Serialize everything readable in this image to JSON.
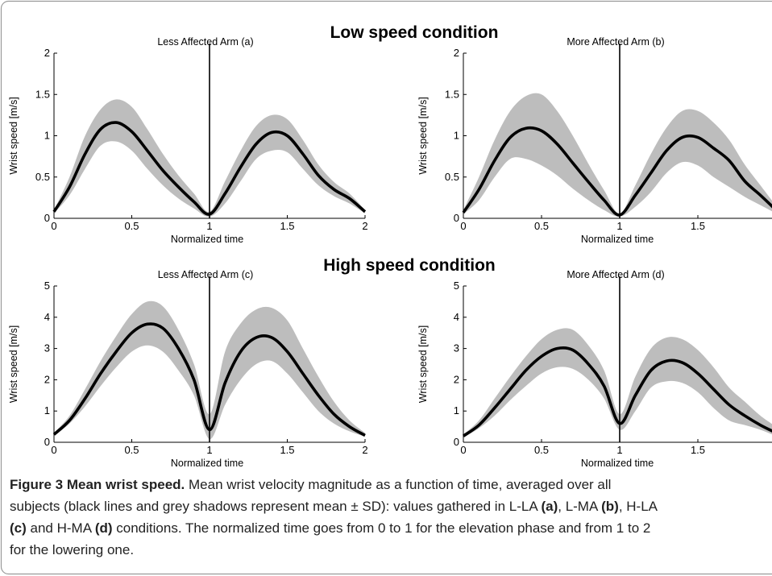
{
  "headings": [
    "Low speed condition",
    "High speed condition"
  ],
  "chart_data": [
    {
      "type": "line",
      "title": "Less Affected Arm (a)",
      "xlabel": "Normalized time",
      "ylabel": "Wrist speed [m/s]",
      "x": [
        0,
        0.1,
        0.2,
        0.3,
        0.4,
        0.5,
        0.6,
        0.7,
        0.8,
        0.9,
        1.0,
        1.1,
        1.2,
        1.3,
        1.4,
        1.5,
        1.6,
        1.7,
        1.8,
        1.9,
        2.0
      ],
      "series": [
        {
          "color": "#000000",
          "values": [
            0.08,
            0.38,
            0.78,
            1.08,
            1.16,
            1.05,
            0.82,
            0.58,
            0.38,
            0.2,
            0.05,
            0.3,
            0.62,
            0.9,
            1.04,
            1.0,
            0.78,
            0.52,
            0.35,
            0.24,
            0.08
          ]
        }
      ],
      "band": {
        "color": "#bdbdbd",
        "upper": [
          0.1,
          0.5,
          1.0,
          1.32,
          1.44,
          1.35,
          1.08,
          0.78,
          0.52,
          0.3,
          0.08,
          0.45,
          0.82,
          1.12,
          1.25,
          1.2,
          0.95,
          0.65,
          0.44,
          0.3,
          0.1
        ],
        "lower": [
          0.06,
          0.28,
          0.6,
          0.88,
          0.93,
          0.82,
          0.6,
          0.4,
          0.24,
          0.12,
          0.02,
          0.18,
          0.45,
          0.72,
          0.82,
          0.8,
          0.6,
          0.4,
          0.27,
          0.18,
          0.06
        ]
      },
      "vline": 1,
      "xlim": [
        0,
        2
      ],
      "xticks": [
        0,
        0.5,
        1,
        1.5,
        2
      ],
      "ylim": [
        0,
        2
      ],
      "yticks": [
        0,
        0.5,
        1,
        1.5,
        2
      ]
    },
    {
      "type": "line",
      "title": "More Affected Arm (b)",
      "xlabel": "Normalized time",
      "ylabel": "Wrist speed [m/s]",
      "x": [
        0,
        0.1,
        0.2,
        0.3,
        0.4,
        0.5,
        0.6,
        0.7,
        0.8,
        0.9,
        1.0,
        1.1,
        1.2,
        1.3,
        1.4,
        1.5,
        1.6,
        1.7,
        1.8,
        1.9,
        2.0
      ],
      "series": [
        {
          "color": "#000000",
          "values": [
            0.07,
            0.35,
            0.7,
            0.98,
            1.09,
            1.06,
            0.9,
            0.67,
            0.44,
            0.22,
            0.04,
            0.28,
            0.55,
            0.82,
            0.98,
            0.98,
            0.85,
            0.7,
            0.45,
            0.28,
            0.1
          ]
        }
      ],
      "band": {
        "color": "#bdbdbd",
        "upper": [
          0.1,
          0.5,
          0.95,
          1.3,
          1.48,
          1.5,
          1.3,
          1.0,
          0.66,
          0.34,
          0.06,
          0.4,
          0.78,
          1.1,
          1.3,
          1.3,
          1.16,
          0.95,
          0.65,
          0.4,
          0.15
        ],
        "lower": [
          0.05,
          0.22,
          0.5,
          0.72,
          0.72,
          0.64,
          0.52,
          0.36,
          0.22,
          0.1,
          0.02,
          0.14,
          0.32,
          0.55,
          0.68,
          0.64,
          0.5,
          0.38,
          0.26,
          0.16,
          0.06
        ]
      },
      "vline": 1,
      "xlim": [
        0,
        2
      ],
      "xticks": [
        0,
        0.5,
        1,
        1.5
      ],
      "ylim": [
        0,
        2
      ],
      "yticks": [
        0,
        0.5,
        1,
        1.5,
        2
      ]
    },
    {
      "type": "line",
      "title": "Less Affected Arm (c)",
      "xlabel": "Normalized time",
      "ylabel": "Wrist speed [m/s]",
      "x": [
        0,
        0.1,
        0.2,
        0.3,
        0.4,
        0.5,
        0.6,
        0.7,
        0.8,
        0.9,
        1.0,
        1.1,
        1.2,
        1.3,
        1.4,
        1.5,
        1.6,
        1.7,
        1.8,
        1.9,
        2.0
      ],
      "series": [
        {
          "color": "#000000",
          "values": [
            0.25,
            0.7,
            1.4,
            2.2,
            2.9,
            3.5,
            3.78,
            3.65,
            3.0,
            2.0,
            0.4,
            1.9,
            2.9,
            3.35,
            3.35,
            2.9,
            2.2,
            1.5,
            0.9,
            0.5,
            0.22
          ]
        }
      ],
      "band": {
        "color": "#bdbdbd",
        "upper": [
          0.3,
          0.85,
          1.7,
          2.6,
          3.4,
          4.1,
          4.5,
          4.35,
          3.6,
          2.5,
          0.9,
          2.9,
          3.8,
          4.25,
          4.3,
          3.9,
          3.0,
          2.1,
          1.3,
          0.7,
          0.3
        ],
        "lower": [
          0.2,
          0.6,
          1.15,
          1.8,
          2.4,
          2.9,
          3.1,
          2.9,
          2.3,
          1.5,
          0.1,
          1.2,
          2.0,
          2.5,
          2.6,
          2.2,
          1.6,
          1.0,
          0.6,
          0.35,
          0.18
        ]
      },
      "vline": 1,
      "xlim": [
        0,
        2
      ],
      "xticks": [
        0,
        0.5,
        1,
        1.5,
        2
      ],
      "ylim": [
        0,
        5
      ],
      "yticks": [
        0,
        1,
        2,
        3,
        4,
        5
      ]
    },
    {
      "type": "line",
      "title": "More Affected Arm (d)",
      "xlabel": "Normalized time",
      "ylabel": "Wrist speed [m/s]",
      "x": [
        0,
        0.1,
        0.2,
        0.3,
        0.4,
        0.5,
        0.6,
        0.7,
        0.8,
        0.9,
        1.0,
        1.1,
        1.2,
        1.3,
        1.4,
        1.5,
        1.6,
        1.7,
        1.8,
        1.9,
        2.0
      ],
      "series": [
        {
          "color": "#000000",
          "values": [
            0.2,
            0.55,
            1.1,
            1.7,
            2.3,
            2.75,
            3.0,
            2.95,
            2.5,
            1.8,
            0.6,
            1.5,
            2.3,
            2.6,
            2.55,
            2.2,
            1.7,
            1.2,
            0.85,
            0.55,
            0.3
          ]
        }
      ],
      "band": {
        "color": "#bdbdbd",
        "upper": [
          0.25,
          0.7,
          1.4,
          2.1,
          2.75,
          3.3,
          3.6,
          3.6,
          3.1,
          2.3,
          0.9,
          2.1,
          3.0,
          3.35,
          3.3,
          2.95,
          2.4,
          1.75,
          1.3,
          0.85,
          0.5
        ],
        "lower": [
          0.15,
          0.45,
          0.85,
          1.35,
          1.8,
          2.2,
          2.4,
          2.35,
          2.0,
          1.4,
          0.4,
          1.0,
          1.75,
          1.95,
          1.9,
          1.6,
          1.1,
          0.7,
          0.55,
          0.4,
          0.2
        ]
      },
      "vline": 1,
      "xlim": [
        0,
        2
      ],
      "xticks": [
        0,
        0.5,
        1,
        1.5
      ],
      "ylim": [
        0,
        5
      ],
      "yticks": [
        0,
        1,
        2,
        3,
        4,
        5
      ]
    }
  ],
  "caption": {
    "lines": [
      [
        "Figure 3 Mean wrist speed.",
        " Mean wrist velocity magnitude as a function of time, averaged over all"
      ],
      [
        "subjects (black lines and grey shadows represent mean ± SD): values gathered in L-LA ",
        "(a)",
        ", L-MA ",
        "(b)",
        ", H-LA"
      ],
      [
        "(c)",
        " and H-MA ",
        "(d)",
        " conditions. The normalized time goes from 0 to 1 for the elevation phase and from 1 to 2"
      ],
      [
        "for the lowering one."
      ]
    ]
  }
}
